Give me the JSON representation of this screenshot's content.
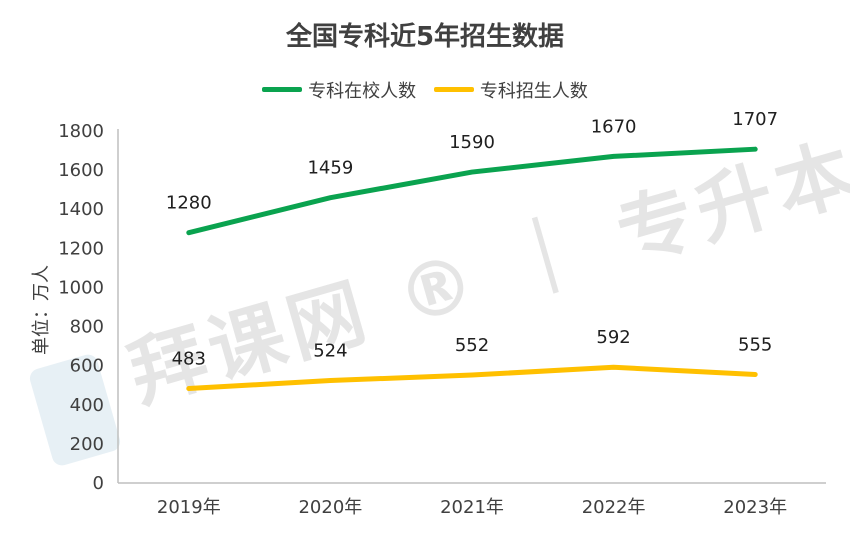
{
  "chart_data": {
    "type": "line",
    "title": "全国专科近5年招生数据",
    "ylabel": "单位：万人",
    "categories": [
      "2019年",
      "2020年",
      "2021年",
      "2022年",
      "2023年"
    ],
    "ylim": [
      0,
      1800
    ],
    "yticks": [
      0,
      200,
      400,
      600,
      800,
      1000,
      1200,
      1400,
      1600,
      1800
    ],
    "series": [
      {
        "name": "专科在校人数",
        "color": "#0aa34f",
        "values": [
          1280,
          1459,
          1590,
          1670,
          1707
        ]
      },
      {
        "name": "专科招生人数",
        "color": "#ffc000",
        "values": [
          483,
          524,
          552,
          592,
          555
        ]
      }
    ],
    "legend": "top",
    "grid": false
  },
  "watermark": "拜课网 ® ｜ 专升本必刷题"
}
